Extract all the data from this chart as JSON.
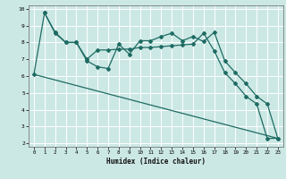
{
  "xlabel": "Humidex (Indice chaleur)",
  "xlim": [
    -0.5,
    23.5
  ],
  "ylim": [
    1.8,
    10.2
  ],
  "yticks": [
    2,
    3,
    4,
    5,
    6,
    7,
    8,
    9,
    10
  ],
  "xticks": [
    0,
    1,
    2,
    3,
    4,
    5,
    6,
    7,
    8,
    9,
    10,
    11,
    12,
    13,
    14,
    15,
    16,
    17,
    18,
    19,
    20,
    21,
    22,
    23
  ],
  "bg_color": "#cce8e5",
  "grid_color": "#ffffff",
  "line_color": "#1e6b63",
  "series1_x": [
    0,
    1,
    2,
    3,
    4,
    5,
    6,
    7,
    8,
    9,
    10,
    11,
    12,
    13,
    14,
    15,
    16,
    17,
    18,
    19,
    20,
    21,
    22,
    23
  ],
  "series1_y": [
    6.1,
    9.75,
    8.6,
    8.0,
    8.0,
    6.9,
    6.55,
    6.45,
    7.9,
    7.3,
    8.1,
    8.1,
    8.35,
    8.55,
    8.1,
    8.35,
    8.05,
    8.6,
    6.9,
    6.2,
    5.55,
    4.8,
    4.35,
    2.3
  ],
  "series2_x": [
    1,
    2,
    3,
    4,
    5,
    6,
    7,
    8,
    9,
    10,
    11,
    12,
    13,
    14,
    15,
    16,
    17,
    18,
    19,
    20,
    21,
    22,
    23
  ],
  "series2_y": [
    9.75,
    8.55,
    8.0,
    8.0,
    7.0,
    7.55,
    7.55,
    7.6,
    7.6,
    7.7,
    7.7,
    7.75,
    7.8,
    7.85,
    7.9,
    8.55,
    7.5,
    6.2,
    5.55,
    4.8,
    4.35,
    2.3,
    2.3
  ],
  "series3_x": [
    0,
    23
  ],
  "series3_y": [
    6.1,
    2.3
  ],
  "marker_size": 2.0,
  "line_width": 0.9
}
